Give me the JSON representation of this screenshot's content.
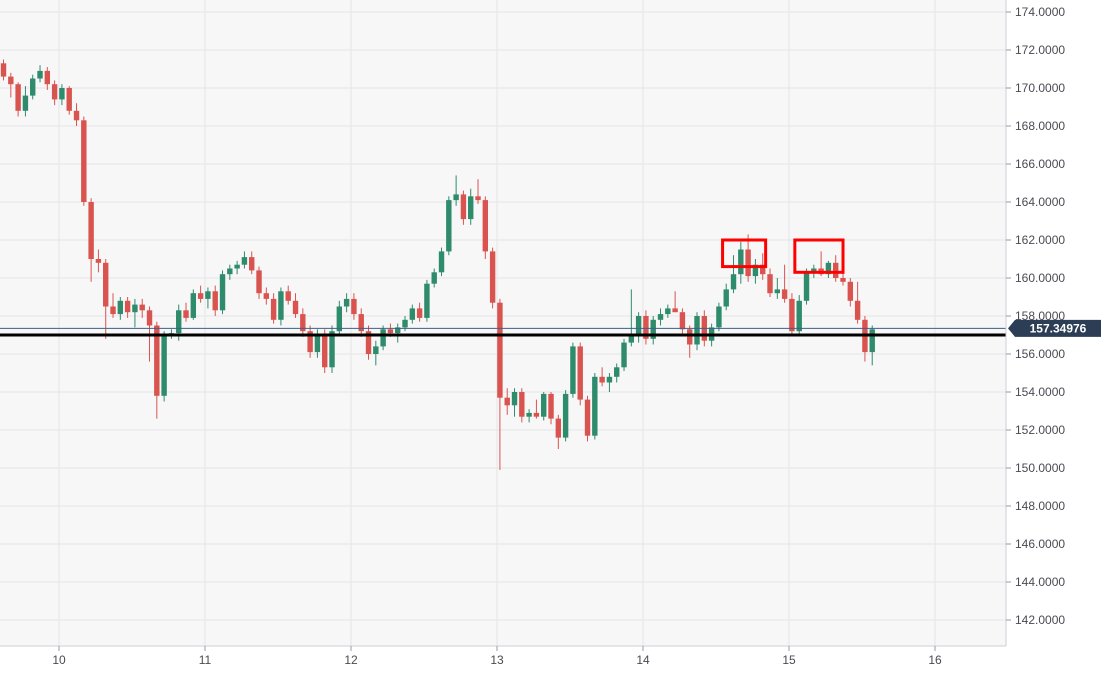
{
  "chart_data": {
    "type": "candlestick",
    "x_axis": {
      "ticks": [
        "10",
        "11",
        "12",
        "13",
        "14",
        "15",
        "16"
      ],
      "range": [
        9.6,
        16.5
      ]
    },
    "y_axis": {
      "ticks": [
        "142.0000",
        "144.0000",
        "146.0000",
        "148.0000",
        "150.0000",
        "152.0000",
        "154.0000",
        "156.0000",
        "158.0000",
        "160.0000",
        "162.0000",
        "164.0000",
        "166.0000",
        "168.0000",
        "170.0000",
        "172.0000",
        "174.0000"
      ],
      "range": [
        141.0,
        174.8
      ]
    },
    "grid": true,
    "current_price": {
      "value": 157.34976,
      "label": "157.34976"
    },
    "horizontal_line": {
      "value": 157.0
    },
    "highlight_boxes": [
      {
        "x0": 14.545,
        "x1": 14.84,
        "y0": 160.6,
        "y1": 162.0
      },
      {
        "x0": 15.04,
        "x1": 15.37,
        "y0": 160.3,
        "y1": 162.0
      }
    ],
    "colors": {
      "up": "#2e8b6c",
      "down": "#d9534f",
      "background": "#f7f7f8",
      "grid": "#e6e6ea",
      "horizontal_line": "#000000",
      "current_price_badge": "#2c3e55",
      "highlight": "#ff0000"
    },
    "candles": [
      [
        9.62,
        171.3,
        171.5,
        170.4,
        170.6
      ],
      [
        9.67,
        170.6,
        170.8,
        169.5,
        170.2
      ],
      [
        9.72,
        170.2,
        170.3,
        168.5,
        168.8
      ],
      [
        9.77,
        168.8,
        170.1,
        168.5,
        169.6
      ],
      [
        9.82,
        169.6,
        170.7,
        169.4,
        170.5
      ],
      [
        9.87,
        170.5,
        171.2,
        170.3,
        170.9
      ],
      [
        9.92,
        170.9,
        171.1,
        169.9,
        170.2
      ],
      [
        9.97,
        170.2,
        170.4,
        169.1,
        169.4
      ],
      [
        10.02,
        169.4,
        170.2,
        169.1,
        170.0
      ],
      [
        10.07,
        170.0,
        170.1,
        168.6,
        168.8
      ],
      [
        10.12,
        168.8,
        169.2,
        168.0,
        168.3
      ],
      [
        10.17,
        168.3,
        168.5,
        163.8,
        164.0
      ],
      [
        10.22,
        164.0,
        164.2,
        159.8,
        161.0
      ],
      [
        10.27,
        161.0,
        161.5,
        160.3,
        160.8
      ],
      [
        10.32,
        160.8,
        161.0,
        156.8,
        158.5
      ],
      [
        10.37,
        158.5,
        159.2,
        157.9,
        158.1
      ],
      [
        10.42,
        158.1,
        159.0,
        157.8,
        158.8
      ],
      [
        10.47,
        158.8,
        159.0,
        157.9,
        158.2
      ],
      [
        10.52,
        158.2,
        158.9,
        157.4,
        158.6
      ],
      [
        10.57,
        158.6,
        158.9,
        157.9,
        158.3
      ],
      [
        10.62,
        158.3,
        158.5,
        155.6,
        157.5
      ],
      [
        10.67,
        157.5,
        157.7,
        152.6,
        153.8
      ],
      [
        10.72,
        153.8,
        157.2,
        153.5,
        157.0
      ],
      [
        10.77,
        157.0,
        157.3,
        156.8,
        157.1
      ],
      [
        10.82,
        157.1,
        158.6,
        156.7,
        158.3
      ],
      [
        10.87,
        158.3,
        158.7,
        157.7,
        157.9
      ],
      [
        10.92,
        157.9,
        159.4,
        157.8,
        159.2
      ],
      [
        10.97,
        159.2,
        159.6,
        158.7,
        158.9
      ],
      [
        11.02,
        158.9,
        159.5,
        158.4,
        159.3
      ],
      [
        11.07,
        159.3,
        159.6,
        158.0,
        158.3
      ],
      [
        11.12,
        158.3,
        160.4,
        158.1,
        160.2
      ],
      [
        11.17,
        160.2,
        160.7,
        159.9,
        160.5
      ],
      [
        11.22,
        160.5,
        160.9,
        160.2,
        160.7
      ],
      [
        11.27,
        160.7,
        161.4,
        160.5,
        161.1
      ],
      [
        11.32,
        161.1,
        161.4,
        160.2,
        160.4
      ],
      [
        11.37,
        160.4,
        160.6,
        158.9,
        159.2
      ],
      [
        11.42,
        159.2,
        159.5,
        158.6,
        158.9
      ],
      [
        11.47,
        158.9,
        159.2,
        157.6,
        157.8
      ],
      [
        11.52,
        157.8,
        159.5,
        157.5,
        159.3
      ],
      [
        11.57,
        159.3,
        159.6,
        158.6,
        158.8
      ],
      [
        11.62,
        158.8,
        159.2,
        157.9,
        158.1
      ],
      [
        11.67,
        158.1,
        158.4,
        156.9,
        157.2
      ],
      [
        11.72,
        157.2,
        157.5,
        155.8,
        156.1
      ],
      [
        11.77,
        156.1,
        157.3,
        155.8,
        157.0
      ],
      [
        11.82,
        157.0,
        157.3,
        155.0,
        155.3
      ],
      [
        11.87,
        155.3,
        157.5,
        155.0,
        157.2
      ],
      [
        11.92,
        157.2,
        158.8,
        157.0,
        158.5
      ],
      [
        11.97,
        158.5,
        159.2,
        158.2,
        158.9
      ],
      [
        12.02,
        158.9,
        159.2,
        157.8,
        158.1
      ],
      [
        12.07,
        158.1,
        158.4,
        156.9,
        157.2
      ],
      [
        12.12,
        157.2,
        157.5,
        155.7,
        156.0
      ],
      [
        12.17,
        156.0,
        156.7,
        155.4,
        156.4
      ],
      [
        12.22,
        156.4,
        157.5,
        156.2,
        157.3
      ],
      [
        12.27,
        157.3,
        157.6,
        156.9,
        157.1
      ],
      [
        12.32,
        157.1,
        157.6,
        156.6,
        157.4
      ],
      [
        12.37,
        157.4,
        158.0,
        157.2,
        157.8
      ],
      [
        12.42,
        157.8,
        158.6,
        157.6,
        158.4
      ],
      [
        12.47,
        158.4,
        158.7,
        157.7,
        157.9
      ],
      [
        12.52,
        157.9,
        159.9,
        157.7,
        159.7
      ],
      [
        12.57,
        159.7,
        160.5,
        159.5,
        160.3
      ],
      [
        12.62,
        160.3,
        161.6,
        160.1,
        161.4
      ],
      [
        12.67,
        161.4,
        164.3,
        161.2,
        164.1
      ],
      [
        12.72,
        164.1,
        165.4,
        163.8,
        164.4
      ],
      [
        12.77,
        164.4,
        164.6,
        162.8,
        163.1
      ],
      [
        12.82,
        163.1,
        164.7,
        162.8,
        164.3
      ],
      [
        12.87,
        164.3,
        165.2,
        163.9,
        164.1
      ],
      [
        12.92,
        164.1,
        164.3,
        161.0,
        161.4
      ],
      [
        12.97,
        161.4,
        161.6,
        158.4,
        158.7
      ],
      [
        13.02,
        158.7,
        158.9,
        149.9,
        153.7
      ],
      [
        13.07,
        153.7,
        154.2,
        152.8,
        153.3
      ],
      [
        13.12,
        153.3,
        154.2,
        152.7,
        154.0
      ],
      [
        13.17,
        154.0,
        154.2,
        152.4,
        152.7
      ],
      [
        13.22,
        152.7,
        153.1,
        152.4,
        152.9
      ],
      [
        13.27,
        152.9,
        153.6,
        152.6,
        152.7
      ],
      [
        13.32,
        152.7,
        154.0,
        152.5,
        153.9
      ],
      [
        13.37,
        153.9,
        154.0,
        152.3,
        152.6
      ],
      [
        13.42,
        152.6,
        152.8,
        151.0,
        151.6
      ],
      [
        13.47,
        151.6,
        154.1,
        151.4,
        153.9
      ],
      [
        13.52,
        153.9,
        156.6,
        153.7,
        156.4
      ],
      [
        13.57,
        156.4,
        156.6,
        153.3,
        153.6
      ],
      [
        13.62,
        153.6,
        153.8,
        151.4,
        151.7
      ],
      [
        13.67,
        151.7,
        155.0,
        151.5,
        154.8
      ],
      [
        13.72,
        154.8,
        155.3,
        154.3,
        154.5
      ],
      [
        13.77,
        154.5,
        155.0,
        154.0,
        154.8
      ],
      [
        13.82,
        154.8,
        155.5,
        154.5,
        155.3
      ],
      [
        13.87,
        155.3,
        156.8,
        155.1,
        156.6
      ],
      [
        13.92,
        156.6,
        159.4,
        156.4,
        157.0
      ],
      [
        13.97,
        157.0,
        158.2,
        156.6,
        158.0
      ],
      [
        14.02,
        158.0,
        158.3,
        156.5,
        156.8
      ],
      [
        14.07,
        156.8,
        158.0,
        156.5,
        157.8
      ],
      [
        14.12,
        157.8,
        158.4,
        157.5,
        158.1
      ],
      [
        14.17,
        158.1,
        158.6,
        157.9,
        158.4
      ],
      [
        14.22,
        158.4,
        159.3,
        158.2,
        158.2
      ],
      [
        14.27,
        158.2,
        158.4,
        157.0,
        157.3
      ],
      [
        14.32,
        157.3,
        157.5,
        155.8,
        156.5
      ],
      [
        14.37,
        156.5,
        158.2,
        156.2,
        158.0
      ],
      [
        14.42,
        158.0,
        158.3,
        156.4,
        156.7
      ],
      [
        14.47,
        156.7,
        157.6,
        156.4,
        157.4
      ],
      [
        14.52,
        157.4,
        158.7,
        157.2,
        158.5
      ],
      [
        14.57,
        158.5,
        159.7,
        158.3,
        159.4
      ],
      [
        14.62,
        159.4,
        161.2,
        159.2,
        160.2
      ],
      [
        14.67,
        160.2,
        161.9,
        159.7,
        161.5
      ],
      [
        14.72,
        161.5,
        162.3,
        159.8,
        160.1
      ],
      [
        14.77,
        160.1,
        161.0,
        159.7,
        160.7
      ],
      [
        14.82,
        160.7,
        161.3,
        159.9,
        160.2
      ],
      [
        14.87,
        160.2,
        160.5,
        159.0,
        159.2
      ],
      [
        14.92,
        159.2,
        160.0,
        158.9,
        159.4
      ],
      [
        14.97,
        159.4,
        160.7,
        158.7,
        158.9
      ],
      [
        15.02,
        158.9,
        159.2,
        157.0,
        157.2
      ],
      [
        15.07,
        157.2,
        159.1,
        157.0,
        158.8
      ],
      [
        15.12,
        158.8,
        160.5,
        158.6,
        160.3
      ],
      [
        15.17,
        160.3,
        160.7,
        160.0,
        160.5
      ],
      [
        15.22,
        160.5,
        161.4,
        160.1,
        160.2
      ],
      [
        15.27,
        160.2,
        160.9,
        160.0,
        160.8
      ],
      [
        15.32,
        160.8,
        161.2,
        159.8,
        160.0
      ],
      [
        15.37,
        160.0,
        160.3,
        159.6,
        159.8
      ],
      [
        15.42,
        159.8,
        160.0,
        158.5,
        158.8
      ],
      [
        15.47,
        158.8,
        159.8,
        157.6,
        157.8
      ],
      [
        15.52,
        157.8,
        158.0,
        155.6,
        156.1
      ],
      [
        15.57,
        156.1,
        157.5,
        155.4,
        157.3
      ]
    ]
  }
}
